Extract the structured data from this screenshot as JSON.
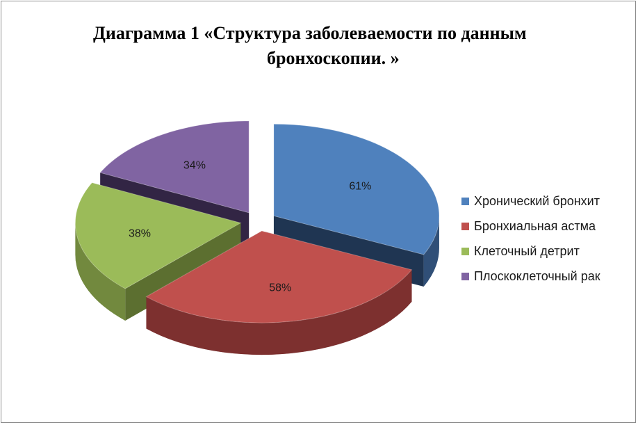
{
  "chart_data": {
    "type": "pie",
    "title_line1": "Диаграмма 1  «Структура  заболеваемости по данным",
    "title_line2": "бронхоскопии. »",
    "categories": [
      "Хронический бронхит",
      "Бронхиальная астма",
      "Клеточный детрит",
      "Плоскоклеточный рак"
    ],
    "values": [
      61,
      58,
      38,
      34
    ],
    "value_labels": [
      "61%",
      "58%",
      "38%",
      "34%"
    ],
    "colors": [
      "#4f81bd",
      "#c0504d",
      "#9bbb59",
      "#8064a2"
    ],
    "side_colors": [
      "#1f3552",
      "#5a2020",
      "#5c6f30",
      "#322544"
    ],
    "style": "3d-exploded",
    "legend_position": "right"
  }
}
